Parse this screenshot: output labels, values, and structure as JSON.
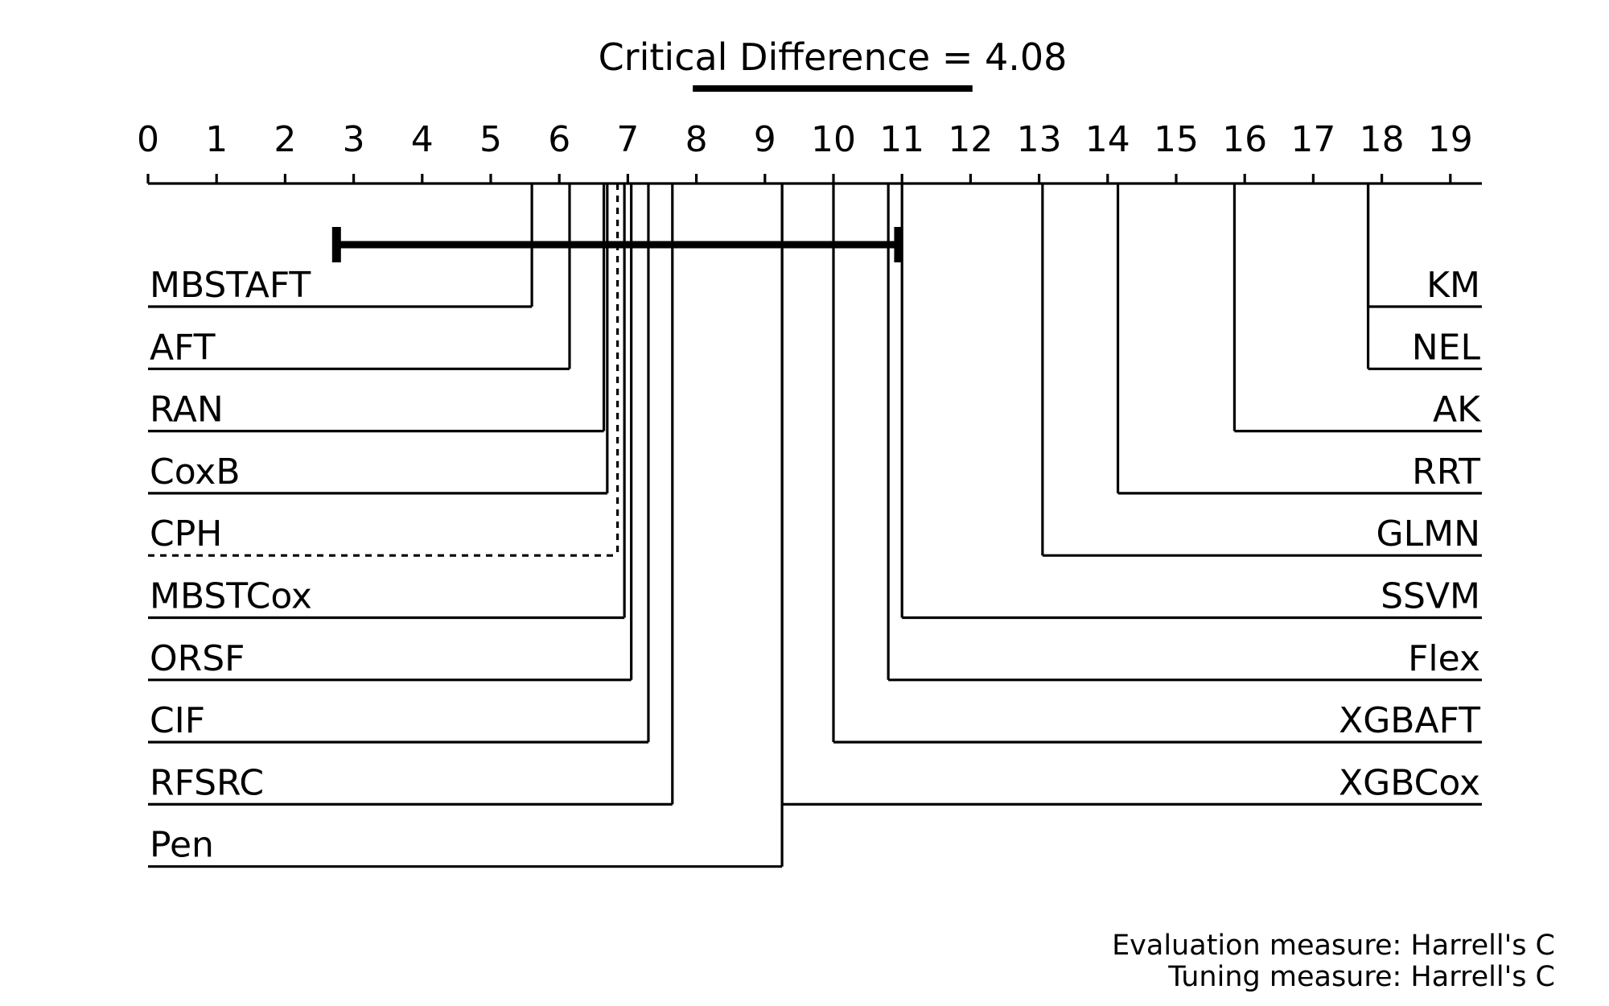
{
  "chart_data": {
    "type": "critical-difference",
    "title": "Critical Difference = 4.08",
    "critical_difference": 4.08,
    "axis": {
      "min": 0,
      "max": 19,
      "ticks": [
        0,
        1,
        2,
        3,
        4,
        5,
        6,
        7,
        8,
        9,
        10,
        11,
        12,
        13,
        14,
        15,
        16,
        17,
        18,
        19
      ]
    },
    "left_models": [
      {
        "name": "MBSTAFT",
        "rank": 5.6
      },
      {
        "name": "AFT",
        "rank": 6.15
      },
      {
        "name": "RAN",
        "rank": 6.65
      },
      {
        "name": "CoxB",
        "rank": 6.7
      },
      {
        "name": "CPH",
        "rank": 6.85,
        "style": "dashed"
      },
      {
        "name": "MBSTCox",
        "rank": 6.95
      },
      {
        "name": "ORSF",
        "rank": 7.05
      },
      {
        "name": "CIF",
        "rank": 7.3
      },
      {
        "name": "RFSRC",
        "rank": 7.65
      },
      {
        "name": "Pen",
        "rank": 9.25
      }
    ],
    "right_models": [
      {
        "name": "KM",
        "rank": 17.8
      },
      {
        "name": "NEL",
        "rank": 17.8
      },
      {
        "name": "AK",
        "rank": 15.85
      },
      {
        "name": "RRT",
        "rank": 14.15
      },
      {
        "name": "GLMN",
        "rank": 13.05
      },
      {
        "name": "SSVM",
        "rank": 11.0
      },
      {
        "name": "Flex",
        "rank": 10.8
      },
      {
        "name": "XGBAFT",
        "rank": 10.0
      },
      {
        "name": "XGBCox",
        "rank": 9.25
      }
    ],
    "baseline_interval": {
      "from": 2.75,
      "to": 10.95
    }
  },
  "footer": {
    "evaluation": "Evaluation measure: Harrell's C",
    "tuning": "Tuning measure: Harrell's C"
  }
}
